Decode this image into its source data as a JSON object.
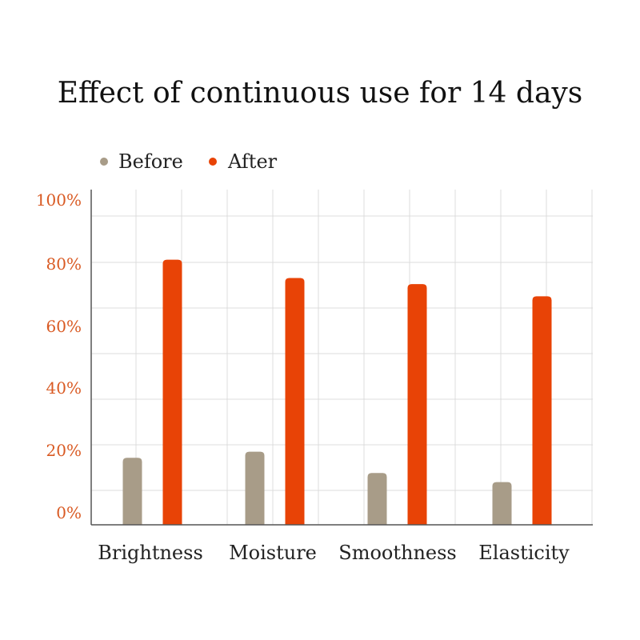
{
  "chart_data": {
    "type": "bar",
    "title": "Effect of continuous use for 14 days",
    "categories": [
      "Brightness",
      "Moisture",
      "Smoothness",
      "Elasticity"
    ],
    "series": [
      {
        "name": "Before",
        "values": [
          22,
          24,
          17,
          14
        ]
      },
      {
        "name": "After",
        "values": [
          87,
          81,
          79,
          75
        ]
      }
    ],
    "y_ticks": [
      "0%",
      "20%",
      "40%",
      "60%",
      "80%",
      "100%"
    ],
    "ylim": [
      0,
      110
    ],
    "xlabel": "",
    "ylabel": "",
    "grid": true,
    "legend_position": "top-left",
    "colors": {
      "Before": "#a89c88",
      "After": "#e84306",
      "tick_label": "#d95a23",
      "axis": "#555555",
      "grid": "#dcdcdc"
    }
  }
}
